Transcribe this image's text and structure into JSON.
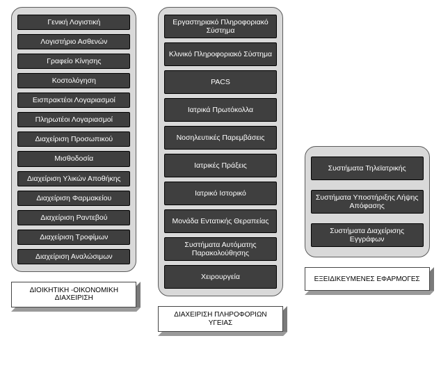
{
  "diagram": {
    "type": "infographic",
    "background_color": "#ffffff",
    "panel_background": "#d9d9d9",
    "panel_border_color": "#5a5a5a",
    "panel_border_radius": 16,
    "item_background": "#3f3f3f",
    "item_text_color": "#ffffff",
    "item_border_color": "#000000",
    "item_fontsize": 10.5,
    "footer_face_background": "#ffffff",
    "footer_face_border": "#444444",
    "footer_depth_side": "#7a7a7a",
    "footer_depth_bottom": "#9a9a9a",
    "footer_fontsize": 10
  },
  "columns": [
    {
      "footer": "ΔΙΟΙΚΗΤΙΚΗ -ΟΙΚΟΝΟΜΙΚΗ ΔΙΑΧΕΙΡΙΣΗ",
      "items": [
        "Γενική Λογιστική",
        "Λογιστήριο Ασθενών",
        "Γραφείο Κίνησης",
        "Κοστολόγηση",
        "Εισπρακτέοι Λογαριασμοί",
        "Πληρωτέοι Λογαριασμοί",
        "Διαχείριση Προσωπικού",
        "Μισθοδοσία",
        "Διαχείριση Υλικών Αποθήκης",
        "Διαχείριση Φαρμακείου",
        "Διαχείριση Ραντεβού",
        "Διαχείριση Τροφίμων",
        "Διαχείριση Αναλώσιμων"
      ]
    },
    {
      "footer": "ΔΙΑΧΕΙΡΙΣΗ ΠΛΗΡΟΦΟΡΙΩΝ ΥΓΕΙΑΣ",
      "items": [
        "Εργαστηριακό Πληροφοριακό Σύστημα",
        "Κλινικό Πληροφοριακό Σύστημα",
        "PACS",
        "Ιατρικά Πρωτόκολλα",
        "Νοσηλευτικές Παρεμβάσεις",
        "Ιατρικές Πράξεις",
        "Ιατρικό Ιστορικό",
        "Μονάδα Εντατικής Θεραπείας",
        "Συστήματα Αυτόματης Παρακολούθησης",
        "Χειρουργεία"
      ]
    },
    {
      "footer": "ΕΞΕΙΔΙΚΕΥΜΕΝΕΣ ΕΦΑΡΜΟΓΕΣ",
      "items": [
        "Συστήματα Τηλεϊατρικής",
        "Συστήματα Υποστήριξης Λήψης Απόφασης",
        "Συστήματα Διαχείρισης Εγγράφων"
      ]
    }
  ]
}
